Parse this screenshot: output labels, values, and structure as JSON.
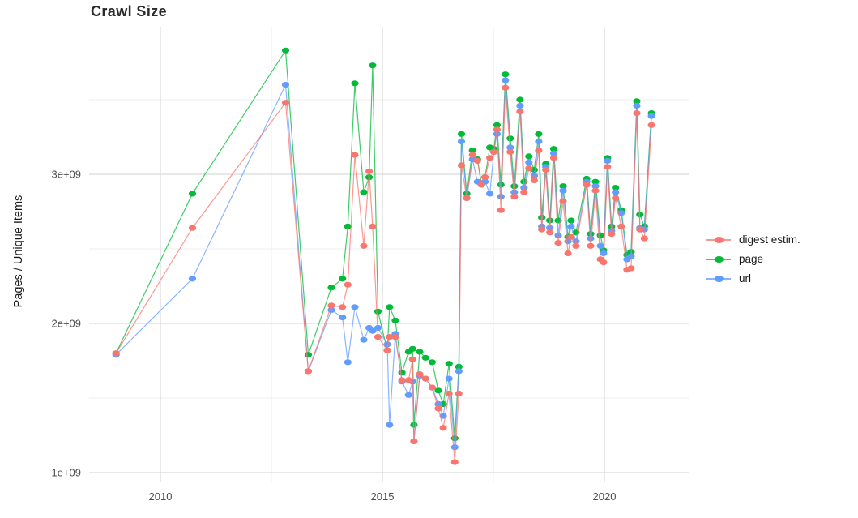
{
  "title": "Crawl Size",
  "y_axis_title": "Pages / Unique Items",
  "colors": {
    "digest": "#F8766D",
    "page": "#00BA38",
    "url": "#619CFF",
    "grid_major": "#d9d9d9",
    "grid_minor": "#ececec",
    "tick_text": "#4d4d4d",
    "background": "#ffffff"
  },
  "chart_data": {
    "type": "line",
    "title": "Crawl Size",
    "xlabel": "",
    "ylabel": "Pages / Unique Items",
    "legend_position": "right",
    "grid": "major and minor gridlines, no panel border",
    "x_unit": "year (decimal = fraction of year, one point per crawl)",
    "y_unit": "items, values given in billions (1e9)",
    "xlim": [
      2008.4,
      2021.9
    ],
    "ylim_e9": [
      0.93,
      3.98
    ],
    "x_ticks": [
      2010,
      2015,
      2020
    ],
    "x_minor_ticks": [
      2012.5,
      2017.5
    ],
    "y_ticks_e9": [
      1,
      2,
      3
    ],
    "y_minor_ticks_e9": [
      1.5,
      2.5,
      3.5
    ],
    "y_tick_labels": [
      "1e+09",
      "2e+09",
      "3e+09"
    ],
    "x": [
      2009.0,
      2010.72,
      2012.82,
      2013.33,
      2013.85,
      2014.1,
      2014.22,
      2014.38,
      2014.58,
      2014.7,
      2014.78,
      2014.9,
      2015.11,
      2015.16,
      2015.29,
      2015.44,
      2015.59,
      2015.68,
      2015.71,
      2015.84,
      2015.97,
      2016.12,
      2016.26,
      2016.37,
      2016.5,
      2016.63,
      2016.72,
      2016.78,
      2016.9,
      2017.03,
      2017.14,
      2017.23,
      2017.31,
      2017.42,
      2017.51,
      2017.58,
      2017.67,
      2017.77,
      2017.88,
      2017.97,
      2018.1,
      2018.19,
      2018.3,
      2018.42,
      2018.52,
      2018.59,
      2018.68,
      2018.77,
      2018.86,
      2018.96,
      2019.07,
      2019.18,
      2019.25,
      2019.36,
      2019.6,
      2019.69,
      2019.8,
      2019.91,
      2019.98,
      2020.07,
      2020.16,
      2020.25,
      2020.38,
      2020.51,
      2020.6,
      2020.73,
      2020.8,
      2020.9,
      2021.06
    ],
    "series": [
      {
        "name": "digest estim.",
        "color": "#F8766D",
        "values_e9": [
          1.8,
          2.64,
          3.48,
          1.68,
          2.12,
          2.11,
          2.26,
          3.13,
          2.52,
          3.02,
          2.65,
          1.91,
          1.82,
          1.91,
          1.91,
          1.62,
          1.62,
          1.76,
          1.21,
          1.66,
          1.63,
          1.57,
          1.43,
          1.3,
          1.53,
          1.07,
          1.53,
          3.06,
          2.84,
          3.13,
          3.09,
          2.93,
          2.98,
          3.11,
          3.15,
          3.3,
          2.76,
          3.58,
          3.15,
          2.85,
          3.42,
          2.88,
          3.04,
          2.96,
          3.16,
          2.63,
          3.03,
          2.61,
          3.11,
          2.54,
          2.82,
          2.47,
          2.58,
          2.52,
          2.93,
          2.52,
          2.89,
          2.43,
          2.41,
          3.05,
          2.6,
          2.84,
          2.65,
          2.36,
          2.37,
          3.41,
          2.63,
          2.57,
          3.33
        ]
      },
      {
        "name": "page",
        "color": "#00BA38",
        "values_e9": [
          1.8,
          2.87,
          3.83,
          1.79,
          2.24,
          2.3,
          2.65,
          3.61,
          2.88,
          2.98,
          3.73,
          2.08,
          1.82,
          2.11,
          2.02,
          1.67,
          1.81,
          1.83,
          1.32,
          1.81,
          1.77,
          1.74,
          1.55,
          1.46,
          1.73,
          1.23,
          1.71,
          3.27,
          2.87,
          3.16,
          3.1,
          2.94,
          2.98,
          3.18,
          3.17,
          3.33,
          2.93,
          3.67,
          3.24,
          2.92,
          3.5,
          2.95,
          3.12,
          3.03,
          3.27,
          2.71,
          3.07,
          2.69,
          3.17,
          2.69,
          2.92,
          2.58,
          2.69,
          2.61,
          2.97,
          2.6,
          2.95,
          2.59,
          2.49,
          3.11,
          2.65,
          2.91,
          2.76,
          2.46,
          2.48,
          3.49,
          2.73,
          2.65,
          3.41
        ]
      },
      {
        "name": "url",
        "color": "#619CFF",
        "values_e9": [
          1.79,
          2.3,
          3.6,
          1.68,
          2.09,
          2.04,
          1.74,
          2.11,
          1.89,
          1.97,
          1.95,
          1.97,
          1.86,
          1.32,
          1.93,
          1.61,
          1.52,
          1.61,
          1.21,
          1.65,
          1.63,
          1.57,
          1.46,
          1.38,
          1.63,
          1.17,
          1.68,
          3.22,
          2.84,
          3.1,
          2.95,
          2.93,
          2.95,
          2.87,
          3.15,
          3.27,
          2.85,
          3.63,
          3.18,
          2.88,
          3.46,
          2.91,
          3.08,
          2.99,
          3.22,
          2.65,
          3.05,
          2.64,
          3.14,
          2.59,
          2.89,
          2.55,
          2.65,
          2.55,
          2.95,
          2.57,
          2.92,
          2.52,
          2.47,
          3.09,
          2.62,
          2.88,
          2.74,
          2.43,
          2.45,
          3.46,
          2.64,
          2.63,
          3.39
        ]
      }
    ],
    "draw_order": [
      "page",
      "url",
      "digest estim."
    ]
  },
  "legend": {
    "items": [
      {
        "label": "digest estim.",
        "color": "#F8766D"
      },
      {
        "label": "page",
        "color": "#00BA38"
      },
      {
        "label": "url",
        "color": "#619CFF"
      }
    ]
  }
}
